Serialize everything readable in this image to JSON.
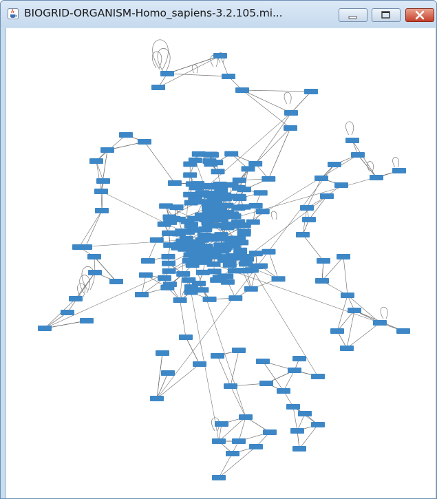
{
  "window": {
    "title": "BIOGRID-ORGANISM-Homo_sapiens-3.2.105.mi...",
    "app_icon": "java-cup-icon",
    "controls": [
      "minimize-icon",
      "maximize-icon",
      "close-icon"
    ]
  },
  "colors": {
    "node_fill": "#3d87c6",
    "edge_stroke": "#777777",
    "canvas_bg": "#ffffff",
    "titlebar_bg": "#c9ddf1",
    "close_red": "#c5402a"
  }
}
